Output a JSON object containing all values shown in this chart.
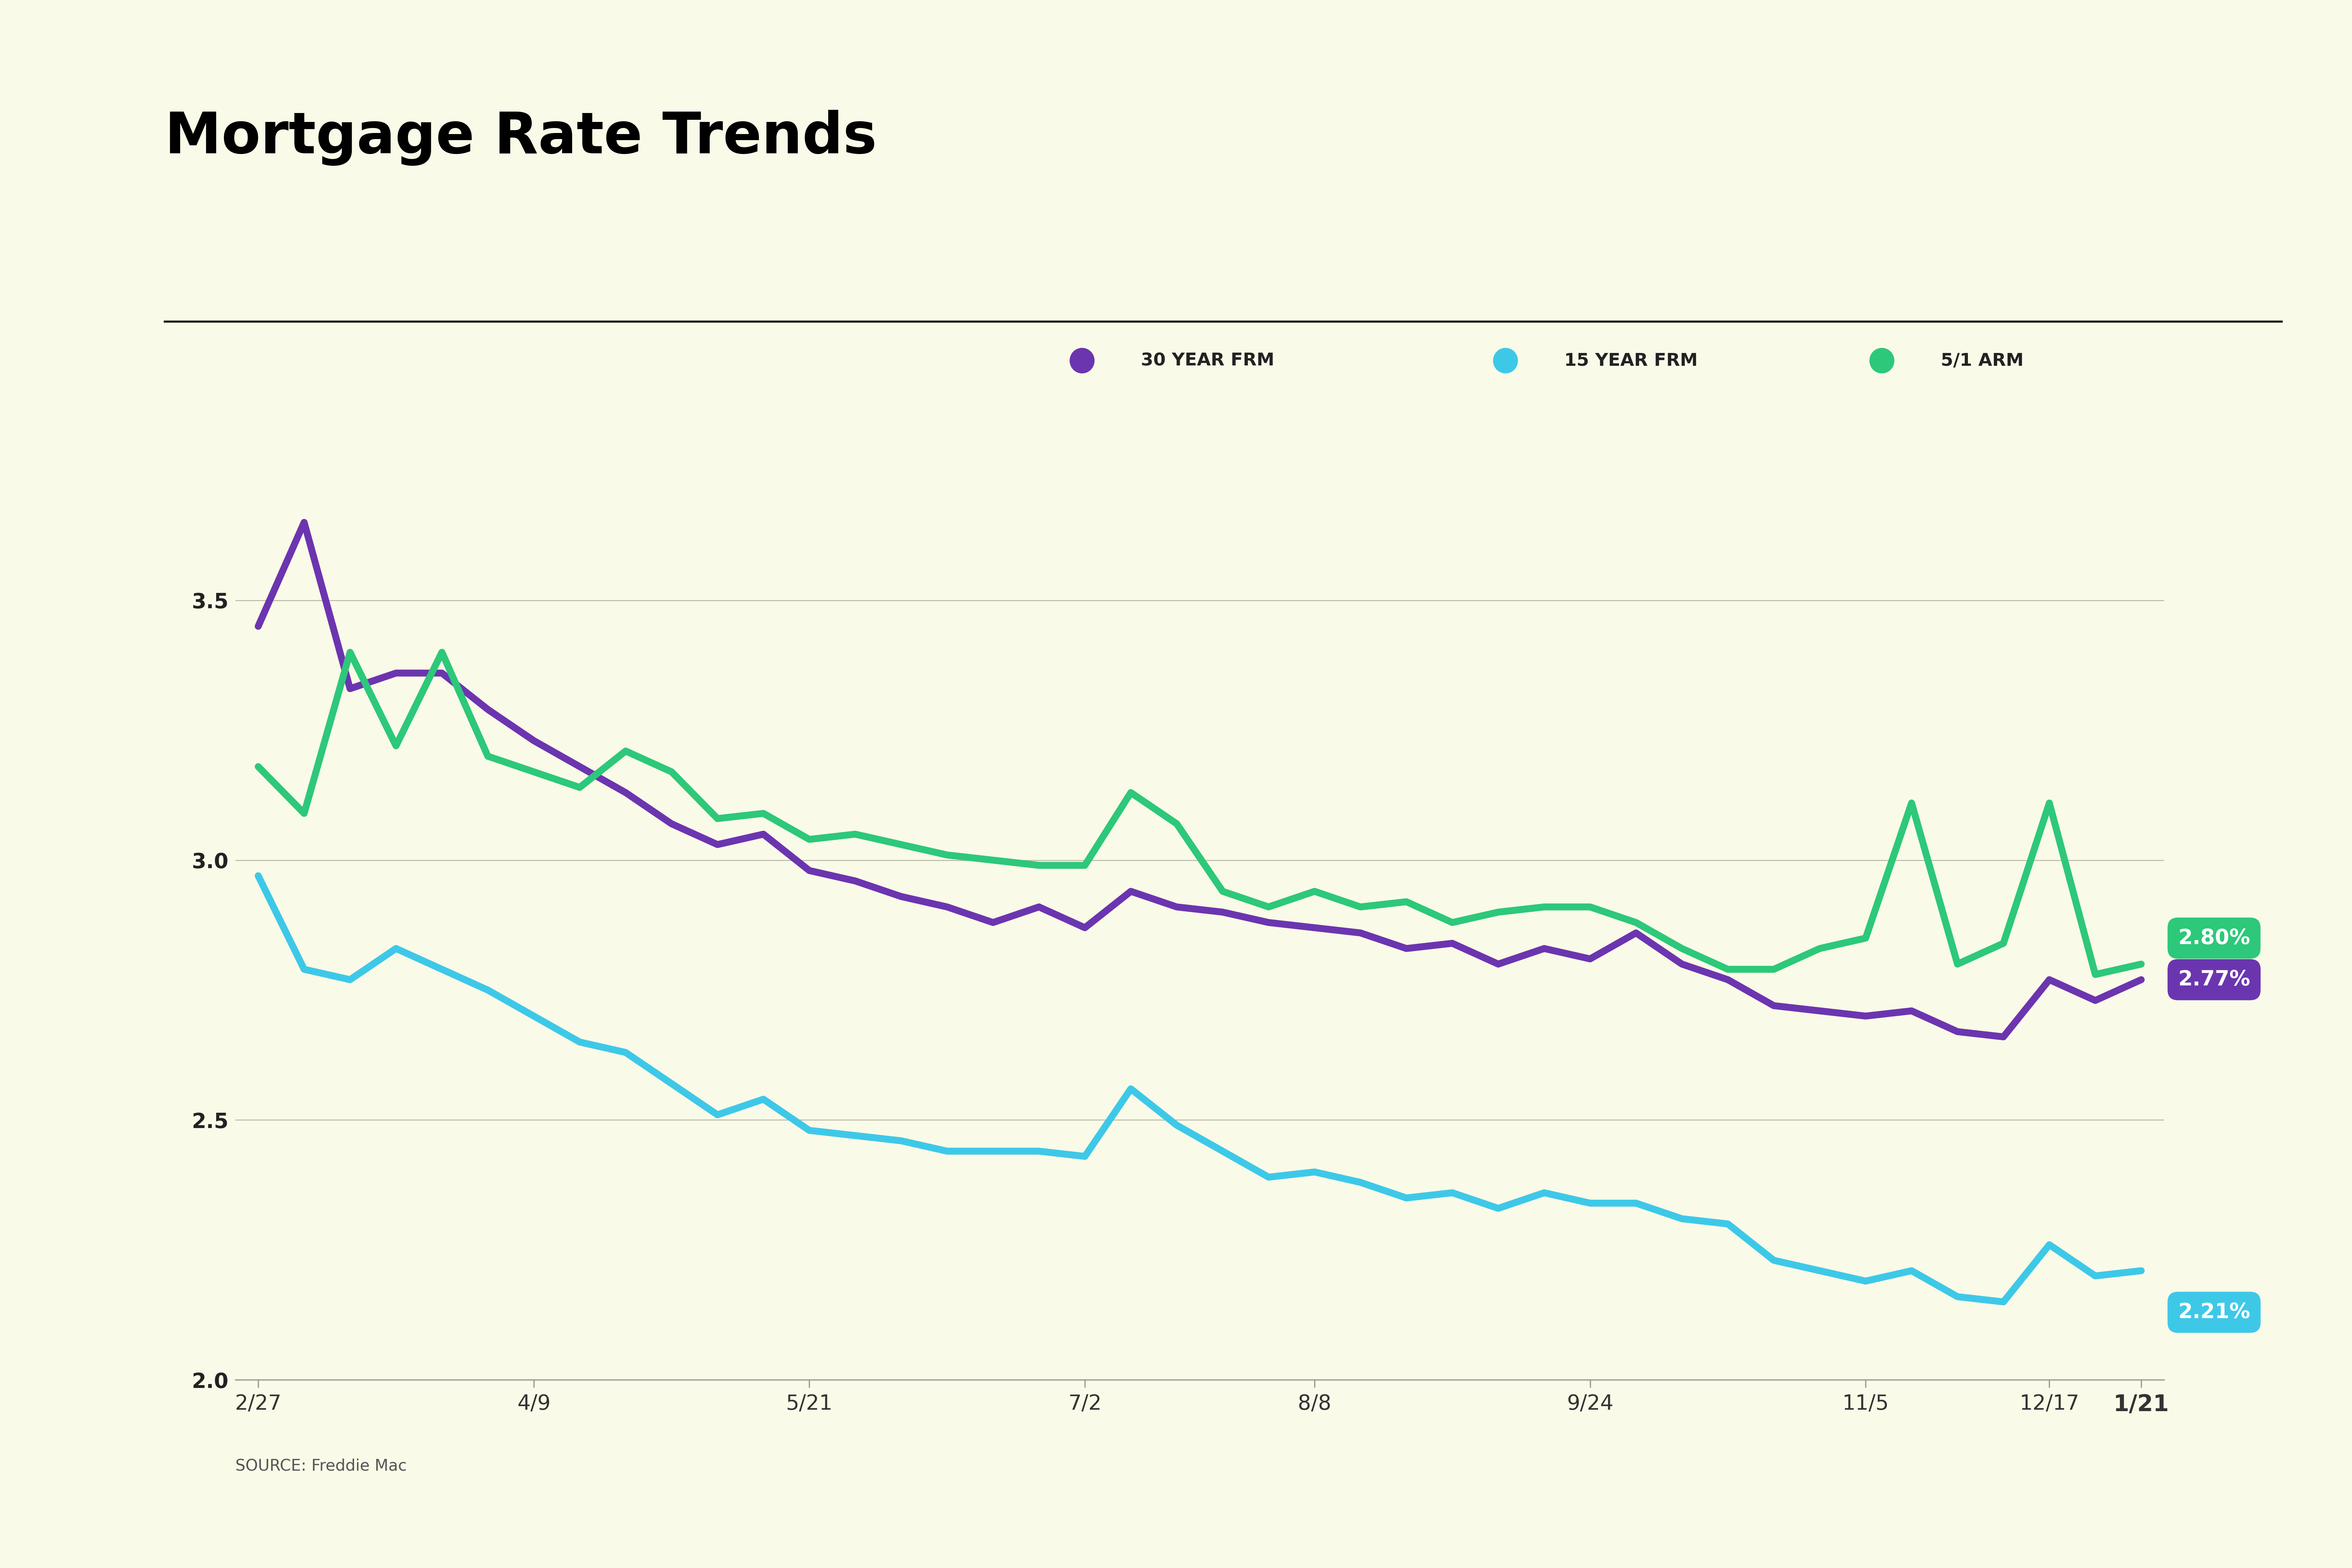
{
  "title": "Mortgage Rate Trends",
  "source": "SOURCE: Freddie Mac",
  "background_color": "#FAFAE8",
  "title_color": "#000000",
  "title_fontsize": 115,
  "source_fontsize": 32,
  "legend_fontsize": 36,
  "tick_fontsize": 42,
  "annotation_fontsize": 42,
  "x_labels": [
    "2/27",
    "4/9",
    "5/21",
    "7/2",
    "8/8",
    "9/24",
    "11/5",
    "12/17",
    "1/21"
  ],
  "ylim": [
    2.0,
    3.75
  ],
  "yticks": [
    2.0,
    2.5,
    3.0,
    3.5
  ],
  "ytick_labels": [
    "2.0",
    "2.5",
    "3.0",
    "3.5"
  ],
  "series": {
    "30yr": {
      "label": "30 YEAR FRM",
      "color": "#6B35B0",
      "final_label": "2.77%",
      "values": [
        3.45,
        3.65,
        3.33,
        3.36,
        3.36,
        3.29,
        3.23,
        3.18,
        3.13,
        3.07,
        3.03,
        3.05,
        2.98,
        2.96,
        2.93,
        2.91,
        2.88,
        2.91,
        2.87,
        2.94,
        2.91,
        2.9,
        2.88,
        2.87,
        2.86,
        2.83,
        2.84,
        2.8,
        2.83,
        2.81,
        2.86,
        2.8,
        2.77,
        2.72,
        2.71,
        2.7,
        2.71,
        2.67,
        2.66,
        2.77,
        2.73,
        2.77
      ]
    },
    "15yr": {
      "label": "15 YEAR FRM",
      "color": "#3EC8E8",
      "final_label": "2.21%",
      "values": [
        2.97,
        2.79,
        2.77,
        2.83,
        2.79,
        2.75,
        2.7,
        2.65,
        2.63,
        2.57,
        2.51,
        2.54,
        2.48,
        2.47,
        2.46,
        2.44,
        2.44,
        2.44,
        2.43,
        2.56,
        2.49,
        2.44,
        2.39,
        2.4,
        2.38,
        2.35,
        2.36,
        2.33,
        2.36,
        2.34,
        2.34,
        2.31,
        2.3,
        2.23,
        2.21,
        2.19,
        2.21,
        2.16,
        2.15,
        2.26,
        2.2,
        2.21
      ]
    },
    "arm": {
      "label": "5/1 ARM",
      "color": "#2DC87A",
      "final_label": "2.80%",
      "values": [
        3.18,
        3.09,
        3.4,
        3.22,
        3.4,
        3.2,
        3.17,
        3.14,
        3.21,
        3.17,
        3.08,
        3.09,
        3.04,
        3.05,
        3.03,
        3.01,
        3.0,
        2.99,
        2.99,
        3.13,
        3.07,
        2.94,
        2.91,
        2.94,
        2.91,
        2.92,
        2.88,
        2.9,
        2.91,
        2.91,
        2.88,
        2.83,
        2.79,
        2.79,
        2.83,
        2.85,
        3.11,
        2.8,
        2.84,
        3.11,
        2.78,
        2.8
      ]
    }
  },
  "x_tick_indices": [
    0,
    6,
    12,
    18,
    23,
    29,
    35,
    39,
    41
  ],
  "line_width": 14
}
